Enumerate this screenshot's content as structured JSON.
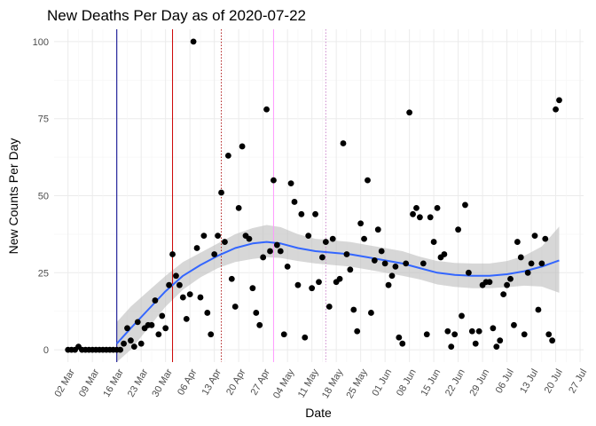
{
  "chart_data": {
    "type": "scatter",
    "title": "New Deaths Per Day as of 2020-07-22",
    "xlabel": "Date",
    "ylabel": "New Counts Per Day",
    "x_ticks": [
      "02 Mar",
      "09 Mar",
      "16 Mar",
      "23 Mar",
      "30 Mar",
      "06 Apr",
      "13 Apr",
      "20 Apr",
      "27 Apr",
      "04 May",
      "11 May",
      "18 May",
      "25 May",
      "01 Jun",
      "08 Jun",
      "15 Jun",
      "22 Jun",
      "29 Jun",
      "06 Jul",
      "13 Jul",
      "20 Jul",
      "27 Jul"
    ],
    "y_ticks": [
      0,
      25,
      50,
      75,
      100
    ],
    "xlim": [
      "2020-02-27",
      "2020-07-28"
    ],
    "ylim": [
      -4,
      104
    ],
    "grid": true,
    "point_color": "#000000",
    "smooth_color": "#3366ff",
    "band_color": "#bdbdbd",
    "vertical_lines": [
      {
        "date": "2020-03-16",
        "color": "#00008b",
        "style": "solid"
      },
      {
        "date": "2020-04-01",
        "color": "#cc0000",
        "style": "solid"
      },
      {
        "date": "2020-04-15",
        "color": "#b22222",
        "style": "dotted"
      },
      {
        "date": "2020-04-30",
        "color": "#ff99ff",
        "style": "solid"
      },
      {
        "date": "2020-05-15",
        "color": "#cc88cc",
        "style": "dotted"
      }
    ],
    "points": [
      [
        "2020-03-02",
        0
      ],
      [
        "2020-03-03",
        0
      ],
      [
        "2020-03-04",
        0
      ],
      [
        "2020-03-05",
        1
      ],
      [
        "2020-03-06",
        0
      ],
      [
        "2020-03-07",
        0
      ],
      [
        "2020-03-08",
        0
      ],
      [
        "2020-03-09",
        0
      ],
      [
        "2020-03-10",
        0
      ],
      [
        "2020-03-11",
        0
      ],
      [
        "2020-03-12",
        0
      ],
      [
        "2020-03-13",
        0
      ],
      [
        "2020-03-14",
        0
      ],
      [
        "2020-03-15",
        0
      ],
      [
        "2020-03-16",
        0
      ],
      [
        "2020-03-17",
        0
      ],
      [
        "2020-03-18",
        2
      ],
      [
        "2020-03-19",
        7
      ],
      [
        "2020-03-20",
        3
      ],
      [
        "2020-03-21",
        1
      ],
      [
        "2020-03-22",
        9
      ],
      [
        "2020-03-23",
        2
      ],
      [
        "2020-03-24",
        7
      ],
      [
        "2020-03-25",
        8
      ],
      [
        "2020-03-26",
        8
      ],
      [
        "2020-03-27",
        16
      ],
      [
        "2020-03-28",
        5
      ],
      [
        "2020-03-29",
        11
      ],
      [
        "2020-03-30",
        7
      ],
      [
        "2020-03-31",
        21
      ],
      [
        "2020-04-01",
        31
      ],
      [
        "2020-04-02",
        24
      ],
      [
        "2020-04-03",
        21
      ],
      [
        "2020-04-04",
        17
      ],
      [
        "2020-04-05",
        10
      ],
      [
        "2020-04-06",
        18
      ],
      [
        "2020-04-07",
        100
      ],
      [
        "2020-04-08",
        33
      ],
      [
        "2020-04-09",
        17
      ],
      [
        "2020-04-10",
        37
      ],
      [
        "2020-04-11",
        12
      ],
      [
        "2020-04-12",
        5
      ],
      [
        "2020-04-13",
        31
      ],
      [
        "2020-04-14",
        37
      ],
      [
        "2020-04-15",
        51
      ],
      [
        "2020-04-16",
        35
      ],
      [
        "2020-04-17",
        63
      ],
      [
        "2020-04-18",
        23
      ],
      [
        "2020-04-19",
        14
      ],
      [
        "2020-04-20",
        46
      ],
      [
        "2020-04-21",
        66
      ],
      [
        "2020-04-22",
        37
      ],
      [
        "2020-04-23",
        36
      ],
      [
        "2020-04-24",
        20
      ],
      [
        "2020-04-25",
        12
      ],
      [
        "2020-04-26",
        8
      ],
      [
        "2020-04-27",
        30
      ],
      [
        "2020-04-28",
        78
      ],
      [
        "2020-04-29",
        32
      ],
      [
        "2020-04-30",
        55
      ],
      [
        "2020-05-01",
        34
      ],
      [
        "2020-05-02",
        32
      ],
      [
        "2020-05-03",
        5
      ],
      [
        "2020-05-04",
        27
      ],
      [
        "2020-05-05",
        54
      ],
      [
        "2020-05-06",
        48
      ],
      [
        "2020-05-07",
        21
      ],
      [
        "2020-05-08",
        44
      ],
      [
        "2020-05-09",
        4
      ],
      [
        "2020-05-10",
        37
      ],
      [
        "2020-05-11",
        20
      ],
      [
        "2020-05-12",
        44
      ],
      [
        "2020-05-13",
        22
      ],
      [
        "2020-05-14",
        30
      ],
      [
        "2020-05-15",
        35
      ],
      [
        "2020-05-16",
        14
      ],
      [
        "2020-05-17",
        36
      ],
      [
        "2020-05-18",
        22
      ],
      [
        "2020-05-19",
        23
      ],
      [
        "2020-05-20",
        67
      ],
      [
        "2020-05-21",
        31
      ],
      [
        "2020-05-22",
        26
      ],
      [
        "2020-05-23",
        13
      ],
      [
        "2020-05-24",
        6
      ],
      [
        "2020-05-25",
        41
      ],
      [
        "2020-05-26",
        36
      ],
      [
        "2020-05-27",
        55
      ],
      [
        "2020-05-28",
        12
      ],
      [
        "2020-05-29",
        29
      ],
      [
        "2020-05-30",
        39
      ],
      [
        "2020-05-31",
        32
      ],
      [
        "2020-06-01",
        28
      ],
      [
        "2020-06-02",
        21
      ],
      [
        "2020-06-03",
        24
      ],
      [
        "2020-06-04",
        27
      ],
      [
        "2020-06-05",
        4
      ],
      [
        "2020-06-06",
        2
      ],
      [
        "2020-06-07",
        28
      ],
      [
        "2020-06-08",
        77
      ],
      [
        "2020-06-09",
        44
      ],
      [
        "2020-06-10",
        46
      ],
      [
        "2020-06-11",
        43
      ],
      [
        "2020-06-12",
        28
      ],
      [
        "2020-06-13",
        5
      ],
      [
        "2020-06-14",
        43
      ],
      [
        "2020-06-15",
        35
      ],
      [
        "2020-06-16",
        46
      ],
      [
        "2020-06-17",
        30
      ],
      [
        "2020-06-18",
        31
      ],
      [
        "2020-06-19",
        6
      ],
      [
        "2020-06-20",
        1
      ],
      [
        "2020-06-21",
        5
      ],
      [
        "2020-06-22",
        39
      ],
      [
        "2020-06-23",
        11
      ],
      [
        "2020-06-24",
        47
      ],
      [
        "2020-06-25",
        25
      ],
      [
        "2020-06-26",
        6
      ],
      [
        "2020-06-27",
        2
      ],
      [
        "2020-06-28",
        6
      ],
      [
        "2020-06-29",
        21
      ],
      [
        "2020-06-30",
        22
      ],
      [
        "2020-07-01",
        22
      ],
      [
        "2020-07-02",
        7
      ],
      [
        "2020-07-03",
        1
      ],
      [
        "2020-07-04",
        3
      ],
      [
        "2020-07-05",
        18
      ],
      [
        "2020-07-06",
        21
      ],
      [
        "2020-07-07",
        23
      ],
      [
        "2020-07-08",
        8
      ],
      [
        "2020-07-09",
        35
      ],
      [
        "2020-07-10",
        30
      ],
      [
        "2020-07-11",
        5
      ],
      [
        "2020-07-12",
        25
      ],
      [
        "2020-07-13",
        28
      ],
      [
        "2020-07-14",
        37
      ],
      [
        "2020-07-15",
        13
      ],
      [
        "2020-07-16",
        28
      ],
      [
        "2020-07-17",
        36
      ],
      [
        "2020-07-18",
        5
      ],
      [
        "2020-07-19",
        3
      ],
      [
        "2020-07-20",
        78
      ],
      [
        "2020-07-21",
        81
      ]
    ],
    "smooth_fit": [
      [
        "2020-03-16",
        2
      ],
      [
        "2020-03-20",
        7
      ],
      [
        "2020-03-25",
        13
      ],
      [
        "2020-03-30",
        19
      ],
      [
        "2020-04-04",
        24
      ],
      [
        "2020-04-09",
        27.5
      ],
      [
        "2020-04-14",
        30.5
      ],
      [
        "2020-04-19",
        33
      ],
      [
        "2020-04-24",
        34.5
      ],
      [
        "2020-04-28",
        35
      ],
      [
        "2020-05-02",
        34.5
      ],
      [
        "2020-05-07",
        33
      ],
      [
        "2020-05-12",
        32
      ],
      [
        "2020-05-17",
        31.5
      ],
      [
        "2020-05-22",
        31
      ],
      [
        "2020-05-27",
        30
      ],
      [
        "2020-06-01",
        29
      ],
      [
        "2020-06-06",
        28
      ],
      [
        "2020-06-11",
        26.5
      ],
      [
        "2020-06-16",
        25
      ],
      [
        "2020-06-21",
        24.3
      ],
      [
        "2020-06-26",
        24
      ],
      [
        "2020-07-01",
        24
      ],
      [
        "2020-07-06",
        24.5
      ],
      [
        "2020-07-11",
        25.5
      ],
      [
        "2020-07-16",
        27
      ],
      [
        "2020-07-21",
        29
      ]
    ],
    "smooth_band_lower": [
      [
        "2020-03-16",
        -4
      ],
      [
        "2020-03-20",
        0
      ],
      [
        "2020-03-25",
        7
      ],
      [
        "2020-03-30",
        14
      ],
      [
        "2020-04-04",
        19.5
      ],
      [
        "2020-04-09",
        23.5
      ],
      [
        "2020-04-14",
        26.5
      ],
      [
        "2020-04-19",
        28.5
      ],
      [
        "2020-04-24",
        29.5
      ],
      [
        "2020-04-28",
        30
      ],
      [
        "2020-05-02",
        29.8
      ],
      [
        "2020-05-07",
        28.8
      ],
      [
        "2020-05-12",
        28
      ],
      [
        "2020-05-17",
        27.5
      ],
      [
        "2020-05-22",
        27
      ],
      [
        "2020-05-27",
        26
      ],
      [
        "2020-06-01",
        25
      ],
      [
        "2020-06-06",
        24
      ],
      [
        "2020-06-11",
        22.8
      ],
      [
        "2020-06-16",
        21.2
      ],
      [
        "2020-06-21",
        20.4
      ],
      [
        "2020-06-26",
        20
      ],
      [
        "2020-07-01",
        20
      ],
      [
        "2020-07-06",
        20.3
      ],
      [
        "2020-07-11",
        20.8
      ],
      [
        "2020-07-16",
        20.5
      ],
      [
        "2020-07-21",
        18.5
      ]
    ],
    "smooth_band_upper": [
      [
        "2020-03-16",
        9
      ],
      [
        "2020-03-20",
        14
      ],
      [
        "2020-03-25",
        19
      ],
      [
        "2020-03-30",
        24
      ],
      [
        "2020-04-04",
        28.5
      ],
      [
        "2020-04-09",
        31.5
      ],
      [
        "2020-04-14",
        34.5
      ],
      [
        "2020-04-19",
        37.5
      ],
      [
        "2020-04-24",
        39.5
      ],
      [
        "2020-04-28",
        40.5
      ],
      [
        "2020-05-02",
        39.8
      ],
      [
        "2020-05-07",
        37.5
      ],
      [
        "2020-05-12",
        36
      ],
      [
        "2020-05-17",
        35.5
      ],
      [
        "2020-05-22",
        35
      ],
      [
        "2020-05-27",
        34
      ],
      [
        "2020-06-01",
        33
      ],
      [
        "2020-06-06",
        32
      ],
      [
        "2020-06-11",
        30.2
      ],
      [
        "2020-06-16",
        28.8
      ],
      [
        "2020-06-21",
        28.2
      ],
      [
        "2020-06-26",
        28
      ],
      [
        "2020-07-01",
        28
      ],
      [
        "2020-07-06",
        28.8
      ],
      [
        "2020-07-11",
        30.5
      ],
      [
        "2020-07-16",
        33.5
      ],
      [
        "2020-07-21",
        40
      ]
    ]
  }
}
